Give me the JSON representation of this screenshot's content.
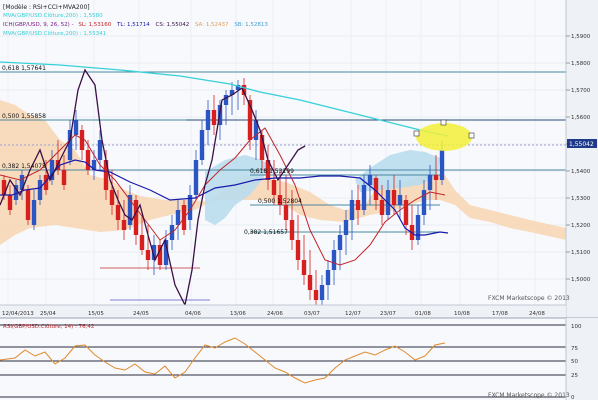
{
  "header": {
    "model": "[Modèle : RSI+CCI+MVA200]",
    "mva_fast": "MVA(GBP/USD.Clôture,200) : 1,5580",
    "ichimoku": "ICH(GBP/USD, 9, 26, 52) -",
    "ich_sl": "SL: 1,53160",
    "ich_tl": "TL: 1,51714",
    "ich_cs": "CS: 1,55042",
    "ich_sa": "SA: 1,52437",
    "ich_sb": "SB: 1,52813",
    "mva_slow": "MVA(GBP/USD.Clôture,200) : 1,55341"
  },
  "colors": {
    "cloud_bear": "#f7d7b5",
    "cloud_bull": "#b9dced",
    "kijun": "#1a1aaa",
    "tenkan": "#c0242a",
    "chikou": "#3b1048",
    "mva": "#36d0d8",
    "candle_bull": "#2b55c2",
    "candle_bear": "#d62020",
    "rsi": "#e08a2c",
    "highlight": "#f3f03a"
  },
  "fib_labels": {
    "f1": "0,618 1,57641",
    "f2": "0,500 1,55858",
    "f3": "0,382 1,54075",
    "f4": "0,618 1,53199",
    "f5": "0,500 1,52804",
    "f6": "0,382 1,51657"
  },
  "price_axis": {
    "ticks": [
      "1,5900",
      "1,5800",
      "1,5700",
      "1,5600",
      "1,5500",
      "1,5400",
      "1,5300",
      "1,5200",
      "1,5100",
      "1,5000"
    ],
    "current": "1,55042"
  },
  "date_axis": [
    "12/04/2013",
    "25/04",
    "15/05",
    "24/05",
    "04/06",
    "13/06",
    "24/06",
    "03/07",
    "12/07",
    "23/07",
    "01/08",
    "10/08",
    "17/08",
    "24/08"
  ],
  "watermark_main": "FXCM Marketscope © 2013",
  "rsi_panel": {
    "title": "RSI(GBP/USD.Clôture, 14) : 76,42",
    "ticks": [
      "100",
      "75",
      "50",
      "25",
      "0"
    ],
    "watermark": "FXCM Marketscope © 2013"
  }
}
